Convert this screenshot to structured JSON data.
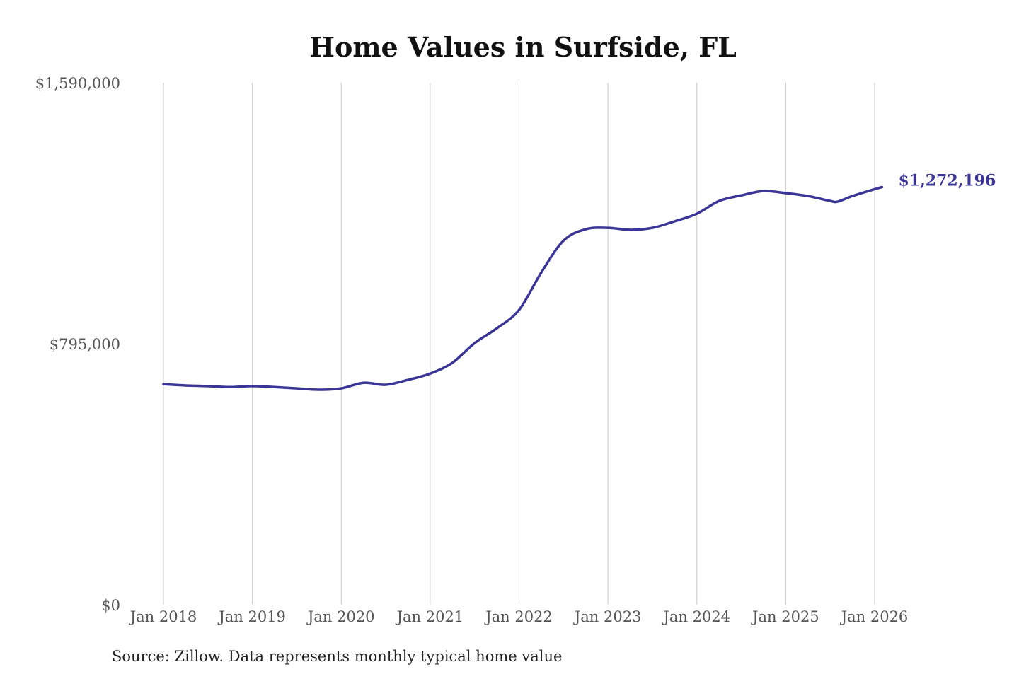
{
  "chart_data": {
    "type": "line",
    "title": "Home Values in Surfside, FL",
    "source": "Source: Zillow. Data represents monthly typical home value",
    "ylim": [
      0,
      1590000
    ],
    "yticks": [
      0,
      795000,
      1590000
    ],
    "ytick_labels": [
      "$0",
      "$795,000",
      "$1,590,000"
    ],
    "xtick_labels": [
      "Jan 2018",
      "Jan 2019",
      "Jan 2020",
      "Jan 2021",
      "Jan 2022",
      "Jan 2023",
      "Jan 2024",
      "Jan 2025",
      "Jan 2026"
    ],
    "grid": "vertical",
    "line_color": "#3a3596",
    "end_label": "$1,272,196",
    "series": [
      {
        "x": [
          "2018-01",
          "2018-04",
          "2018-07",
          "2018-10",
          "2019-01",
          "2019-04",
          "2019-07",
          "2019-10",
          "2020-01",
          "2020-04",
          "2020-07",
          "2020-10",
          "2021-01",
          "2021-04",
          "2021-07",
          "2021-10",
          "2022-01",
          "2022-04",
          "2022-07",
          "2022-10",
          "2023-01",
          "2023-04",
          "2023-07",
          "2023-10",
          "2024-01",
          "2024-04",
          "2024-07",
          "2024-10",
          "2025-01",
          "2025-04",
          "2025-07",
          "2025-08",
          "2025-10",
          "2026-01",
          "2026-02"
        ],
        "values": [
          672000,
          668000,
          666000,
          663000,
          666000,
          663000,
          659000,
          655000,
          659000,
          676000,
          670000,
          685000,
          704000,
          737000,
          797000,
          842000,
          898000,
          1012000,
          1109000,
          1144000,
          1148000,
          1142000,
          1148000,
          1168000,
          1191000,
          1230000,
          1247000,
          1260000,
          1254000,
          1245000,
          1230000,
          1228000,
          1245000,
          1266000,
          1272196
        ]
      }
    ]
  }
}
